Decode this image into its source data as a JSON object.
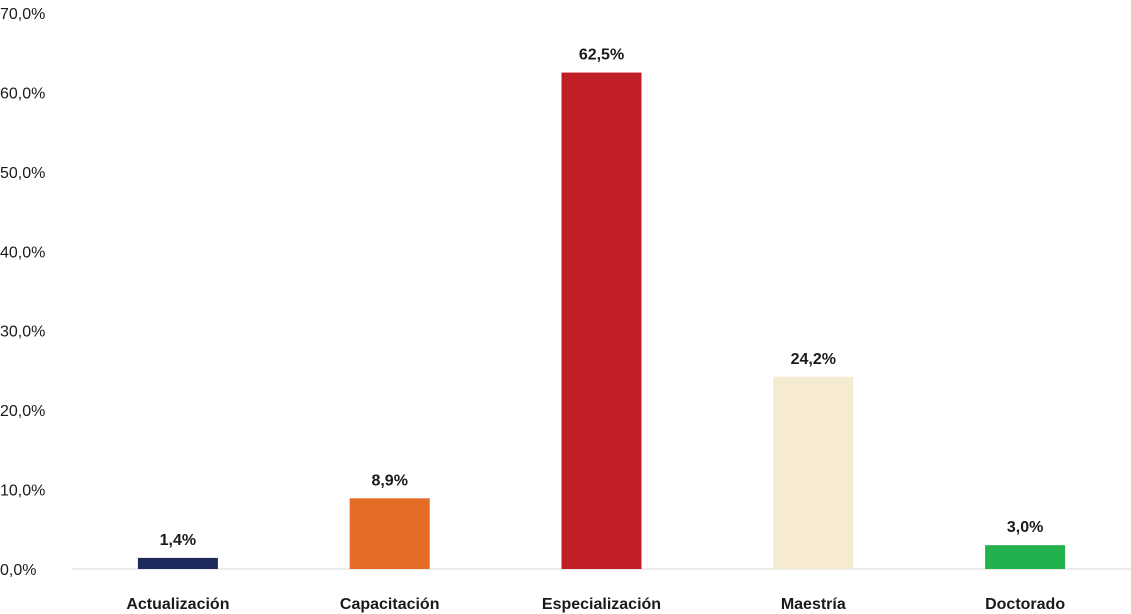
{
  "chart_data": {
    "type": "bar",
    "categories": [
      "Actualización",
      "Capacitación",
      "Especialización",
      "Maestría",
      "Doctorado"
    ],
    "values": [
      1.4,
      8.9,
      62.5,
      24.2,
      3.0
    ],
    "data_labels": [
      "1,4%",
      "8,9%",
      "62,5%",
      "24,2%",
      "3,0%"
    ],
    "colors": [
      "#1f2a5c",
      "#e36d25",
      "#c11f26",
      "#f6ebd0",
      "#23b14d"
    ],
    "ylim": [
      0,
      70
    ],
    "yticks": [
      0,
      10,
      20,
      30,
      40,
      50,
      60,
      70
    ],
    "ytick_labels": [
      "0,0%",
      "10,0%",
      "20,0%",
      "30,0%",
      "40,0%",
      "50,0%",
      "60,0%",
      "70,0%"
    ],
    "grid": false,
    "title": "",
    "xlabel": "",
    "ylabel": ""
  }
}
